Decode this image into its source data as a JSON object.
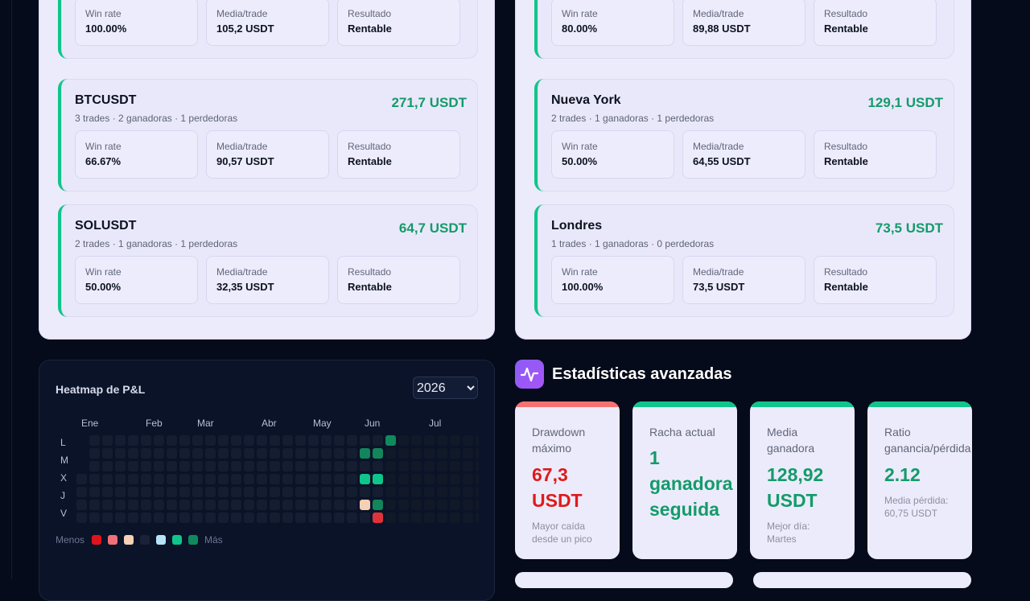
{
  "left_list": [
    {
      "name": "",
      "meta": "",
      "amount": "",
      "stats": [
        {
          "label": "Win rate",
          "value": "100.00%"
        },
        {
          "label": "Media/trade",
          "value": "105,2 USDT"
        },
        {
          "label": "Resultado",
          "value": "Rentable"
        }
      ]
    },
    {
      "name": "BTCUSDT",
      "meta": "3 trades · 2 ganadoras · 1 perdedoras",
      "amount": "271,7 USDT",
      "stats": [
        {
          "label": "Win rate",
          "value": "66.67%"
        },
        {
          "label": "Media/trade",
          "value": "90,57 USDT"
        },
        {
          "label": "Resultado",
          "value": "Rentable"
        }
      ]
    },
    {
      "name": "SOLUSDT",
      "meta": "2 trades · 1 ganadoras · 1 perdedoras",
      "amount": "64,7 USDT",
      "stats": [
        {
          "label": "Win rate",
          "value": "50.00%"
        },
        {
          "label": "Media/trade",
          "value": "32,35 USDT"
        },
        {
          "label": "Resultado",
          "value": "Rentable"
        }
      ]
    }
  ],
  "right_list": [
    {
      "name": "",
      "meta": "",
      "amount": "",
      "stats": [
        {
          "label": "Win rate",
          "value": "80.00%"
        },
        {
          "label": "Media/trade",
          "value": "89,88 USDT"
        },
        {
          "label": "Resultado",
          "value": "Rentable"
        }
      ]
    },
    {
      "name": "Nueva York",
      "meta": "2 trades · 1 ganadoras · 1 perdedoras",
      "amount": "129,1 USDT",
      "stats": [
        {
          "label": "Win rate",
          "value": "50.00%"
        },
        {
          "label": "Media/trade",
          "value": "64,55 USDT"
        },
        {
          "label": "Resultado",
          "value": "Rentable"
        }
      ]
    },
    {
      "name": "Londres",
      "meta": "1 trades · 1 ganadoras · 0 perdedoras",
      "amount": "73,5 USDT",
      "stats": [
        {
          "label": "Win rate",
          "value": "100.00%"
        },
        {
          "label": "Media/trade",
          "value": "73,5 USDT"
        },
        {
          "label": "Resultado",
          "value": "Rentable"
        }
      ]
    }
  ],
  "heatmap": {
    "title": "Heatmap de P&L",
    "year": "2026",
    "months": [
      "Ene",
      "Feb",
      "Mar",
      "Abr",
      "May",
      "Jun",
      "Jul"
    ],
    "days": [
      "L",
      "M",
      "X",
      "J",
      "V"
    ],
    "legend_less": "Menos",
    "legend_more": "Más",
    "legend_colors": [
      "#e0131d",
      "#f0707a",
      "#f6d0b4",
      "#1b2238",
      "#b7e3f7",
      "#10c58a",
      "#0f8a5c"
    ],
    "colors": {
      "empty": "#151d31",
      "pale_empty": "#111827",
      "strong_profit": "#0f8a5c",
      "profit": "#10c58a",
      "dark_profit": "#13855a",
      "small_loss": "#f6d0b4",
      "loss": "#e0323b"
    }
  },
  "advanced": {
    "title": "Estadísticas avanzadas",
    "icon": "activity-icon",
    "cards": [
      {
        "label_lines": [
          "Drawdown",
          "máximo"
        ],
        "big_lines": [
          "67,3",
          "USDT"
        ],
        "sub_lines": [
          "Mayor caída",
          "desde un pico"
        ],
        "bar_color": "#f87171",
        "big_color": "#dc1c1c"
      },
      {
        "label_lines": [
          "Racha actual"
        ],
        "big_lines": [
          "1",
          "ganadora",
          "seguida"
        ],
        "sub_lines": [],
        "bar_color": "#10c58a",
        "big_color": "#149b6a"
      },
      {
        "label_lines": [
          "Media",
          "ganadora"
        ],
        "big_lines": [
          "128,92",
          "USDT"
        ],
        "sub_lines": [
          "Mejor día:",
          "Martes"
        ],
        "bar_color": "#10c58a",
        "big_color": "#149b6a"
      },
      {
        "label_lines": [
          "Ratio",
          "ganancia/pérdida"
        ],
        "big_lines": [
          "2.12"
        ],
        "sub_lines": [
          "Media pérdida:",
          "60,75 USDT"
        ],
        "bar_color": "#10c58a",
        "big_color": "#149b6a"
      }
    ]
  }
}
